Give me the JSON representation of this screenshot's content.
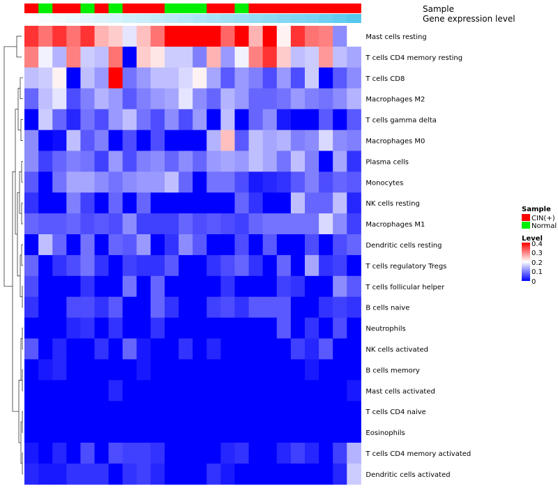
{
  "chart_data": {
    "type": "heatmap",
    "title": "",
    "colors": {
      "cin": "#ff0000",
      "normal": "#00ee00",
      "gene_level_bar": "#55c8ee",
      "low": "#0000ff",
      "mid": "#ffffff",
      "high": "#ff0000"
    },
    "annotations": {
      "sample_label": "Sample",
      "gene_label": "Gene expression level",
      "samples": [
        "CIN(+)",
        "Normal",
        "CIN(+)",
        "CIN(+)",
        "Normal",
        "CIN(+)",
        "Normal",
        "CIN(+)",
        "CIN(+)",
        "CIN(+)",
        "Normal",
        "Normal",
        "Normal",
        "CIN(+)",
        "CIN(+)",
        "Normal",
        "CIN(+)",
        "CIN(+)",
        "CIN(+)",
        "CIN(+)",
        "CIN(+)",
        "CIN(+)",
        "CIN(+)",
        "CIN(+)"
      ],
      "gene_level": [
        0.0,
        0.04,
        0.08,
        0.12,
        0.16,
        0.2,
        0.24,
        0.28,
        0.32,
        0.36,
        0.4,
        0.44,
        0.48,
        0.52,
        0.56,
        0.6,
        0.64,
        0.68,
        0.72,
        0.76,
        0.8,
        0.86,
        0.93,
        1.0
      ]
    },
    "legend": {
      "sample_title": "Sample",
      "sample_items": [
        {
          "label": "CIN(+)",
          "color": "#ff0000"
        },
        {
          "label": "Normal",
          "color": "#00ee00"
        }
      ],
      "level_title": "Level",
      "level_ticks": [
        "0.4",
        "0.3",
        "0.2",
        "0.1",
        "0"
      ],
      "level_range": [
        0,
        0.4
      ]
    },
    "rows": [
      "Mast cells resting",
      "T cells CD4 memory resting",
      "T cells CD8",
      "Macrophages M2",
      "T cells gamma delta",
      "Macrophages M0",
      "Plasma cells",
      "Monocytes",
      "NK cells resting",
      "Macrophages M1",
      "Dendritic cells resting",
      "T cells regulatory  Tregs",
      "T cells follicular helper",
      "B cells naive",
      "Neutrophils",
      "NK cells activated",
      "B cells memory",
      "Mast cells activated",
      "T cells CD4 naive",
      "Eosinophils",
      "T cells CD4 memory activated",
      "Dendritic cells activated"
    ],
    "values": [
      [
        0.36,
        0.31,
        0.36,
        0.31,
        0.36,
        0.26,
        0.24,
        0.18,
        0.25,
        0.31,
        0.4,
        0.4,
        0.4,
        0.4,
        0.32,
        0.4,
        0.26,
        0.4,
        0.21,
        0.36,
        0.31,
        0.3,
        0.11,
        0.2
      ],
      [
        0.3,
        0.19,
        0.14,
        0.3,
        0.16,
        0.15,
        0.31,
        0.0,
        0.24,
        0.22,
        0.16,
        0.16,
        0.1,
        0.26,
        0.12,
        0.19,
        0.3,
        0.36,
        0.24,
        0.15,
        0.16,
        0.28,
        0.15,
        0.13
      ],
      [
        0.15,
        0.16,
        0.21,
        0.0,
        0.15,
        0.12,
        0.4,
        0.09,
        0.12,
        0.15,
        0.15,
        0.17,
        0.21,
        0.13,
        0.07,
        0.12,
        0.1,
        0.06,
        0.12,
        0.06,
        0.16,
        0.0,
        0.07,
        0.11
      ],
      [
        0.08,
        0.15,
        0.18,
        0.06,
        0.1,
        0.14,
        0.12,
        0.07,
        0.1,
        0.12,
        0.13,
        0.18,
        0.11,
        0.08,
        0.14,
        0.12,
        0.08,
        0.08,
        0.09,
        0.12,
        0.1,
        0.09,
        0.11,
        0.14
      ],
      [
        0.0,
        0.16,
        0.08,
        0.03,
        0.09,
        0.06,
        0.12,
        0.15,
        0.09,
        0.06,
        0.11,
        0.06,
        0.12,
        0.0,
        0.15,
        0.0,
        0.08,
        0.11,
        0.02,
        0.0,
        0.0,
        0.07,
        0.0,
        0.07
      ],
      [
        0.11,
        0.0,
        0.01,
        0.15,
        0.07,
        0.1,
        0.0,
        0.06,
        0.0,
        0.06,
        0.0,
        0.0,
        0.0,
        0.14,
        0.25,
        0.07,
        0.15,
        0.13,
        0.14,
        0.1,
        0.11,
        0.17,
        0.11,
        0.1
      ],
      [
        0.11,
        0.05,
        0.08,
        0.1,
        0.09,
        0.05,
        0.12,
        0.06,
        0.1,
        0.11,
        0.08,
        0.11,
        0.08,
        0.12,
        0.13,
        0.12,
        0.15,
        0.13,
        0.09,
        0.15,
        0.1,
        0.0,
        0.13,
        0.04
      ],
      [
        0.07,
        0.0,
        0.09,
        0.13,
        0.13,
        0.11,
        0.09,
        0.11,
        0.12,
        0.12,
        0.15,
        0.08,
        0.0,
        0.09,
        0.09,
        0.06,
        0.02,
        0.03,
        0.04,
        0.07,
        0.1,
        0.06,
        0.08,
        0.07
      ],
      [
        0.04,
        0.0,
        0.0,
        0.1,
        0.05,
        0.0,
        0.08,
        0.0,
        0.08,
        0.0,
        0.0,
        0.0,
        0.0,
        0.0,
        0.0,
        0.08,
        0.04,
        0.0,
        0.0,
        0.15,
        0.08,
        0.08,
        0.15,
        0.03
      ],
      [
        0.08,
        0.07,
        0.07,
        0.08,
        0.06,
        0.07,
        0.06,
        0.11,
        0.05,
        0.05,
        0.05,
        0.08,
        0.06,
        0.07,
        0.06,
        0.05,
        0.08,
        0.09,
        0.09,
        0.09,
        0.09,
        0.17,
        0.11,
        0.05
      ],
      [
        0.0,
        0.15,
        0.08,
        0.0,
        0.09,
        0.0,
        0.08,
        0.07,
        0.12,
        0.0,
        0.04,
        0.11,
        0.07,
        0.0,
        0.0,
        0.06,
        0.0,
        0.07,
        0.0,
        0.0,
        0.06,
        0.0,
        0.06,
        0.08
      ],
      [
        0.08,
        0.0,
        0.04,
        0.06,
        0.09,
        0.04,
        0.0,
        0.05,
        0.04,
        0.04,
        0.07,
        0.0,
        0.0,
        0.04,
        0.06,
        0.08,
        0.04,
        0.0,
        0.08,
        0.0,
        0.13,
        0.04,
        0.05,
        0.0
      ],
      [
        0.06,
        0.0,
        0.0,
        0.0,
        0.04,
        0.0,
        0.0,
        0.09,
        0.0,
        0.08,
        0.0,
        0.0,
        0.0,
        0.0,
        0.04,
        0.0,
        0.0,
        0.0,
        0.05,
        0.04,
        0.0,
        0.0,
        0.11,
        0.07
      ],
      [
        0.04,
        0.0,
        0.0,
        0.06,
        0.06,
        0.04,
        0.07,
        0.0,
        0.0,
        0.08,
        0.04,
        0.0,
        0.0,
        0.05,
        0.06,
        0.04,
        0.07,
        0.07,
        0.07,
        0.0,
        0.0,
        0.04,
        0.05,
        0.04
      ],
      [
        0.0,
        0.0,
        0.0,
        0.03,
        0.04,
        0.0,
        0.04,
        0.0,
        0.0,
        0.04,
        0.0,
        0.0,
        0.0,
        0.0,
        0.0,
        0.0,
        0.0,
        0.0,
        0.07,
        0.0,
        0.04,
        0.0,
        0.06,
        0.0
      ],
      [
        0.07,
        0.0,
        0.03,
        0.0,
        0.0,
        0.04,
        0.0,
        0.08,
        0.02,
        0.0,
        0.0,
        0.04,
        0.0,
        0.03,
        0.0,
        0.0,
        0.0,
        0.0,
        0.0,
        0.05,
        0.03,
        0.07,
        0.0,
        0.0
      ],
      [
        0.0,
        0.02,
        0.03,
        0.0,
        0.0,
        0.0,
        0.0,
        0.0,
        0.02,
        0.0,
        0.0,
        0.0,
        0.0,
        0.0,
        0.0,
        0.0,
        0.0,
        0.0,
        0.0,
        0.0,
        0.02,
        0.0,
        0.0,
        0.0
      ],
      [
        0.0,
        0.0,
        0.0,
        0.0,
        0.0,
        0.0,
        0.03,
        0.0,
        0.0,
        0.0,
        0.0,
        0.0,
        0.0,
        0.0,
        0.0,
        0.0,
        0.0,
        0.0,
        0.0,
        0.0,
        0.0,
        0.0,
        0.0,
        0.02
      ],
      [
        0.0,
        0.0,
        0.0,
        0.0,
        0.0,
        0.0,
        0.0,
        0.0,
        0.0,
        0.0,
        0.0,
        0.0,
        0.0,
        0.0,
        0.0,
        0.0,
        0.0,
        0.0,
        0.0,
        0.0,
        0.0,
        0.0,
        0.0,
        0.0
      ],
      [
        0.0,
        0.0,
        0.0,
        0.0,
        0.0,
        0.0,
        0.0,
        0.0,
        0.0,
        0.0,
        0.0,
        0.0,
        0.0,
        0.0,
        0.0,
        0.0,
        0.0,
        0.0,
        0.0,
        0.0,
        0.0,
        0.0,
        0.0,
        0.0
      ],
      [
        0.02,
        0.0,
        0.03,
        0.0,
        0.06,
        0.0,
        0.06,
        0.05,
        0.05,
        0.04,
        0.0,
        0.0,
        0.0,
        0.0,
        0.03,
        0.04,
        0.0,
        0.0,
        0.03,
        0.05,
        0.03,
        0.0,
        0.05,
        0.14
      ],
      [
        0.03,
        0.02,
        0.02,
        0.04,
        0.04,
        0.04,
        0.0,
        0.04,
        0.05,
        0.03,
        0.0,
        0.0,
        0.0,
        0.04,
        0.02,
        0.0,
        0.0,
        0.0,
        0.0,
        0.0,
        0.0,
        0.0,
        0.03,
        0.16
      ]
    ]
  }
}
